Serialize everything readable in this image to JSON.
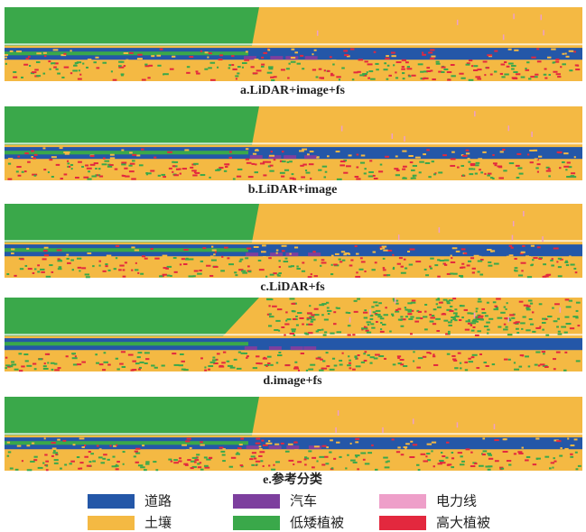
{
  "panels": [
    {
      "caption": "a.LiDAR+image+fs"
    },
    {
      "caption": "b.LiDAR+image"
    },
    {
      "caption": "c.LiDAR+fs"
    },
    {
      "caption": "d.image+fs"
    },
    {
      "caption": "e.参考分类"
    }
  ],
  "legend": [
    {
      "label": "道路",
      "color": "#2457a8"
    },
    {
      "label": "汽车",
      "color": "#7d3f9e"
    },
    {
      "label": "电力线",
      "color": "#ee9fc9"
    },
    {
      "label": "土壤",
      "color": "#f4b943"
    },
    {
      "label": "低矮植被",
      "color": "#3aa84a"
    },
    {
      "label": "高大植被",
      "color": "#e3283e"
    }
  ]
}
